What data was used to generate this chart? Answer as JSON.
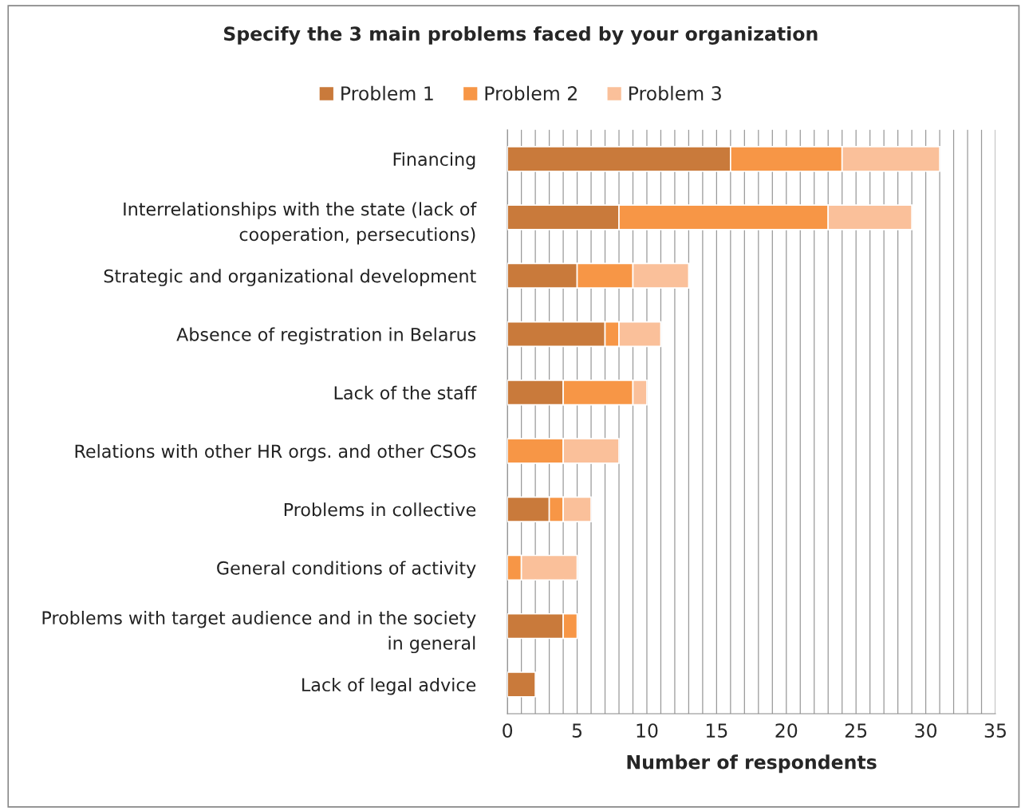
{
  "chart_data": {
    "type": "bar",
    "orientation": "horizontal",
    "stacked": true,
    "title": "Specify the 3 main problems faced by your organization",
    "xlabel": "Number of respondents",
    "categories": [
      "Financing",
      "Interrelationships with the state (lack of cooperation, persecutions)",
      "Strategic and organizational development",
      "Absence of registration in Belarus",
      "Lack of the staff",
      "Relations with other HR orgs. and other CSOs",
      "Problems in collective",
      "General conditions of activity",
      "Problems with target audience and in the society in general",
      "Lack of legal advice"
    ],
    "series": [
      {
        "name": "Problem 1",
        "color": "#c97a3b",
        "values": [
          16,
          8,
          5,
          7,
          4,
          0,
          3,
          0,
          4,
          2
        ]
      },
      {
        "name": "Problem 2",
        "color": "#f79646",
        "values": [
          8,
          15,
          4,
          1,
          5,
          4,
          1,
          1,
          1,
          0
        ]
      },
      {
        "name": "Problem 3",
        "color": "#fac09a",
        "values": [
          7,
          6,
          4,
          3,
          1,
          4,
          2,
          4,
          0,
          0
        ]
      }
    ],
    "xlim": [
      0,
      35
    ],
    "xticks": [
      0,
      {
        "value": 1,
        "label": null
      },
      {
        "value": 2,
        "label": null
      },
      {
        "value": 3,
        "label": null
      },
      {
        "value": 4,
        "label": null
      },
      5,
      {
        "value": 6,
        "label": null
      },
      {
        "value": 7,
        "label": null
      },
      {
        "value": 8,
        "label": null
      },
      {
        "value": 9,
        "label": null
      },
      10,
      {
        "value": 11,
        "label": null
      },
      {
        "value": 12,
        "label": null
      },
      {
        "value": 13,
        "label": null
      },
      {
        "value": 14,
        "label": null
      },
      15,
      {
        "value": 16,
        "label": null
      },
      {
        "value": 17,
        "label": null
      },
      {
        "value": 18,
        "label": null
      },
      {
        "value": 19,
        "label": null
      },
      20,
      {
        "value": 21,
        "label": null
      },
      {
        "value": 22,
        "label": null
      },
      {
        "value": 23,
        "label": null
      },
      {
        "value": 24,
        "label": null
      },
      25,
      {
        "value": 26,
        "label": null
      },
      {
        "value": 27,
        "label": null
      },
      {
        "value": 28,
        "label": null
      },
      {
        "value": 29,
        "label": null
      },
      30,
      {
        "value": 31,
        "label": null
      },
      {
        "value": 32,
        "label": null
      },
      {
        "value": 33,
        "label": null
      },
      {
        "value": 34,
        "label": null
      },
      35
    ],
    "grid": "x",
    "legend": "top"
  }
}
